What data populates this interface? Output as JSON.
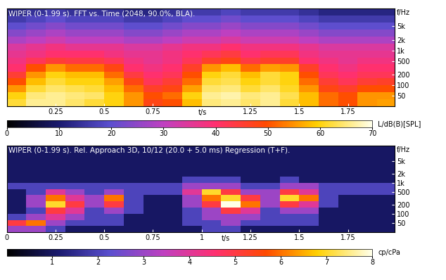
{
  "chart_data": [
    {
      "type": "heatmap",
      "title": "WIPER (0-1.99 s). FFT vs. Time (2048, 90.0%, BLA).",
      "xlabel": "t/s",
      "ylabel": "f/Hz",
      "log": "y",
      "xlim": [
        0,
        1.99
      ],
      "xticks": [
        0.25,
        0.5,
        0.75,
        1.25,
        1.5,
        1.75
      ],
      "ylim": [
        25,
        16000
      ],
      "yticks": [
        50,
        100,
        200,
        500,
        {
          "value": 1000,
          "label": "1k"
        },
        {
          "value": 2000,
          "label": "2k"
        },
        {
          "value": 5000,
          "label": "5k"
        }
      ],
      "time_edges": [
        0,
        0.1,
        0.2,
        0.3,
        0.4,
        0.5,
        0.6,
        0.7,
        0.8,
        0.9,
        1.0,
        1.1,
        1.2,
        1.3,
        1.4,
        1.5,
        1.6,
        1.7,
        1.8,
        1.9,
        1.99
      ],
      "freq_edges": [
        25,
        40,
        63,
        100,
        160,
        250,
        400,
        630,
        1000,
        1600,
        2500,
        4000,
        6300,
        10000,
        16000
      ],
      "cells": [
        [
          62,
          66,
          66,
          64,
          62,
          60,
          55,
          48,
          50,
          58,
          65,
          66,
          64,
          66,
          62,
          58,
          52,
          50,
          55,
          56
        ],
        [
          60,
          65,
          66,
          65,
          64,
          60,
          55,
          50,
          52,
          60,
          66,
          67,
          65,
          66,
          63,
          58,
          52,
          50,
          55,
          55
        ],
        [
          55,
          62,
          64,
          63,
          62,
          58,
          52,
          46,
          48,
          56,
          64,
          65,
          62,
          64,
          61,
          55,
          48,
          46,
          50,
          50
        ],
        [
          50,
          58,
          62,
          60,
          60,
          56,
          48,
          42,
          45,
          52,
          62,
          63,
          60,
          62,
          60,
          52,
          45,
          42,
          45,
          46
        ],
        [
          45,
          55,
          60,
          58,
          58,
          52,
          44,
          40,
          42,
          50,
          60,
          62,
          58,
          62,
          60,
          50,
          42,
          40,
          42,
          42
        ],
        [
          40,
          50,
          55,
          52,
          52,
          48,
          40,
          38,
          40,
          46,
          55,
          58,
          52,
          56,
          55,
          46,
          40,
          38,
          40,
          40
        ],
        [
          38,
          42,
          45,
          44,
          44,
          42,
          38,
          36,
          38,
          42,
          46,
          48,
          44,
          46,
          46,
          40,
          38,
          36,
          38,
          38
        ],
        [
          36,
          38,
          40,
          40,
          40,
          38,
          36,
          36,
          38,
          40,
          42,
          44,
          40,
          42,
          42,
          38,
          36,
          36,
          36,
          36
        ],
        [
          34,
          36,
          38,
          36,
          36,
          36,
          34,
          34,
          36,
          38,
          38,
          40,
          38,
          38,
          38,
          36,
          34,
          34,
          34,
          34
        ],
        [
          28,
          30,
          32,
          30,
          30,
          30,
          28,
          28,
          30,
          32,
          32,
          34,
          32,
          32,
          32,
          30,
          28,
          28,
          28,
          28
        ],
        [
          24,
          26,
          28,
          26,
          26,
          26,
          24,
          24,
          26,
          28,
          28,
          30,
          28,
          28,
          28,
          26,
          24,
          24,
          24,
          24
        ],
        [
          20,
          22,
          24,
          22,
          22,
          22,
          20,
          20,
          22,
          24,
          24,
          26,
          24,
          24,
          24,
          22,
          20,
          20,
          20,
          20
        ],
        [
          16,
          18,
          20,
          18,
          18,
          18,
          16,
          16,
          18,
          20,
          20,
          22,
          20,
          20,
          20,
          18,
          16,
          16,
          16,
          16
        ],
        [
          12,
          14,
          16,
          14,
          14,
          14,
          12,
          12,
          14,
          16,
          16,
          18,
          16,
          16,
          16,
          14,
          12,
          12,
          12,
          12
        ]
      ],
      "colorbar_lim": [
        0,
        70
      ],
      "colorbar_ticks": [
        0,
        10,
        20,
        30,
        40,
        50,
        60,
        70
      ],
      "colorbar_label": "L/dB(B)[SPL]"
    },
    {
      "type": "heatmap",
      "title": "WIPER (0-1.99 s). Rel. Approach 3D, 10/12 (20.0 + 5.0 ms) Regression (T+F).",
      "xlabel": "t/s",
      "ylabel": "f/Hz",
      "log": "y",
      "xlim": [
        0,
        1.99
      ],
      "xticks": [
        0,
        0.25,
        0.5,
        0.75,
        1,
        1.25,
        1.5,
        1.75
      ],
      "ylim": [
        25,
        16000
      ],
      "yticks": [
        50,
        100,
        200,
        500,
        {
          "value": 1000,
          "label": "1k"
        },
        {
          "value": 2000,
          "label": "2k"
        },
        {
          "value": 5000,
          "label": "5k"
        }
      ],
      "time_edges": [
        0,
        0.1,
        0.2,
        0.3,
        0.4,
        0.5,
        0.6,
        0.7,
        0.8,
        0.9,
        1.0,
        1.1,
        1.2,
        1.3,
        1.4,
        1.5,
        1.6,
        1.7,
        1.8,
        1.9,
        1.99
      ],
      "freq_edges": [
        25,
        40,
        63,
        100,
        160,
        250,
        400,
        630,
        1000,
        1600,
        2500,
        4000,
        6300,
        10000,
        16000
      ],
      "cells": [
        [
          3,
          3,
          2,
          1,
          1,
          1,
          1,
          1,
          1,
          1,
          2,
          2,
          1,
          1,
          1,
          1,
          1,
          1,
          1,
          1
        ],
        [
          5,
          6,
          3,
          2,
          2,
          2,
          1,
          1,
          1,
          2,
          2,
          3,
          2,
          2,
          2,
          2,
          1,
          1,
          1,
          1
        ],
        [
          2,
          3,
          4,
          3,
          2,
          2,
          1,
          1,
          1,
          2,
          3,
          3,
          3,
          2,
          2,
          2,
          1,
          1,
          1,
          1
        ],
        [
          1,
          2,
          5,
          4,
          2,
          3,
          2,
          1,
          1,
          2,
          3,
          5,
          4,
          2,
          3,
          3,
          1,
          1,
          1,
          1
        ],
        [
          1,
          3,
          7,
          5,
          3,
          5,
          2,
          1,
          1,
          3,
          5,
          8,
          6,
          3,
          5,
          4,
          2,
          1,
          1,
          1
        ],
        [
          1,
          3,
          6,
          4,
          3,
          6,
          2,
          1,
          1,
          3,
          6,
          7,
          5,
          3,
          7,
          6,
          2,
          1,
          1,
          1
        ],
        [
          1,
          2,
          4,
          3,
          2,
          3,
          2,
          2,
          2,
          4,
          7,
          5,
          3,
          3,
          5,
          4,
          2,
          2,
          2,
          2
        ],
        [
          2,
          2,
          2,
          2,
          2,
          2,
          2,
          2,
          2,
          3,
          3,
          3,
          2,
          2,
          3,
          3,
          2,
          2,
          2,
          2
        ],
        [
          1,
          1,
          1,
          1,
          1,
          1,
          1,
          1,
          1,
          2,
          2,
          2,
          1,
          1,
          2,
          1,
          1,
          1,
          1,
          1
        ],
        [
          1,
          1,
          1,
          1,
          1,
          1,
          1,
          1,
          1,
          1,
          1,
          1,
          1,
          1,
          1,
          1,
          1,
          1,
          1,
          1
        ],
        [
          1,
          1,
          1,
          1,
          1,
          1,
          1,
          1,
          1,
          1,
          1,
          1,
          1,
          1,
          1,
          1,
          1,
          1,
          1,
          1
        ],
        [
          1,
          1,
          1,
          1,
          1,
          1,
          1,
          1,
          1,
          1,
          1,
          1,
          1,
          1,
          1,
          1,
          1,
          1,
          1,
          1
        ],
        [
          1,
          1,
          1,
          1,
          1,
          1,
          1,
          1,
          1,
          1,
          1,
          1,
          1,
          1,
          1,
          1,
          1,
          1,
          1,
          1
        ],
        [
          1,
          1,
          1,
          1,
          1,
          1,
          1,
          1,
          1,
          1,
          1,
          1,
          1,
          1,
          1,
          1,
          1,
          1,
          1,
          1
        ]
      ],
      "colorbar_lim": [
        0,
        8
      ],
      "colorbar_ticks": [
        1,
        2,
        3,
        4,
        5,
        6,
        7,
        8
      ],
      "colorbar_label": "cp/cPa"
    }
  ]
}
